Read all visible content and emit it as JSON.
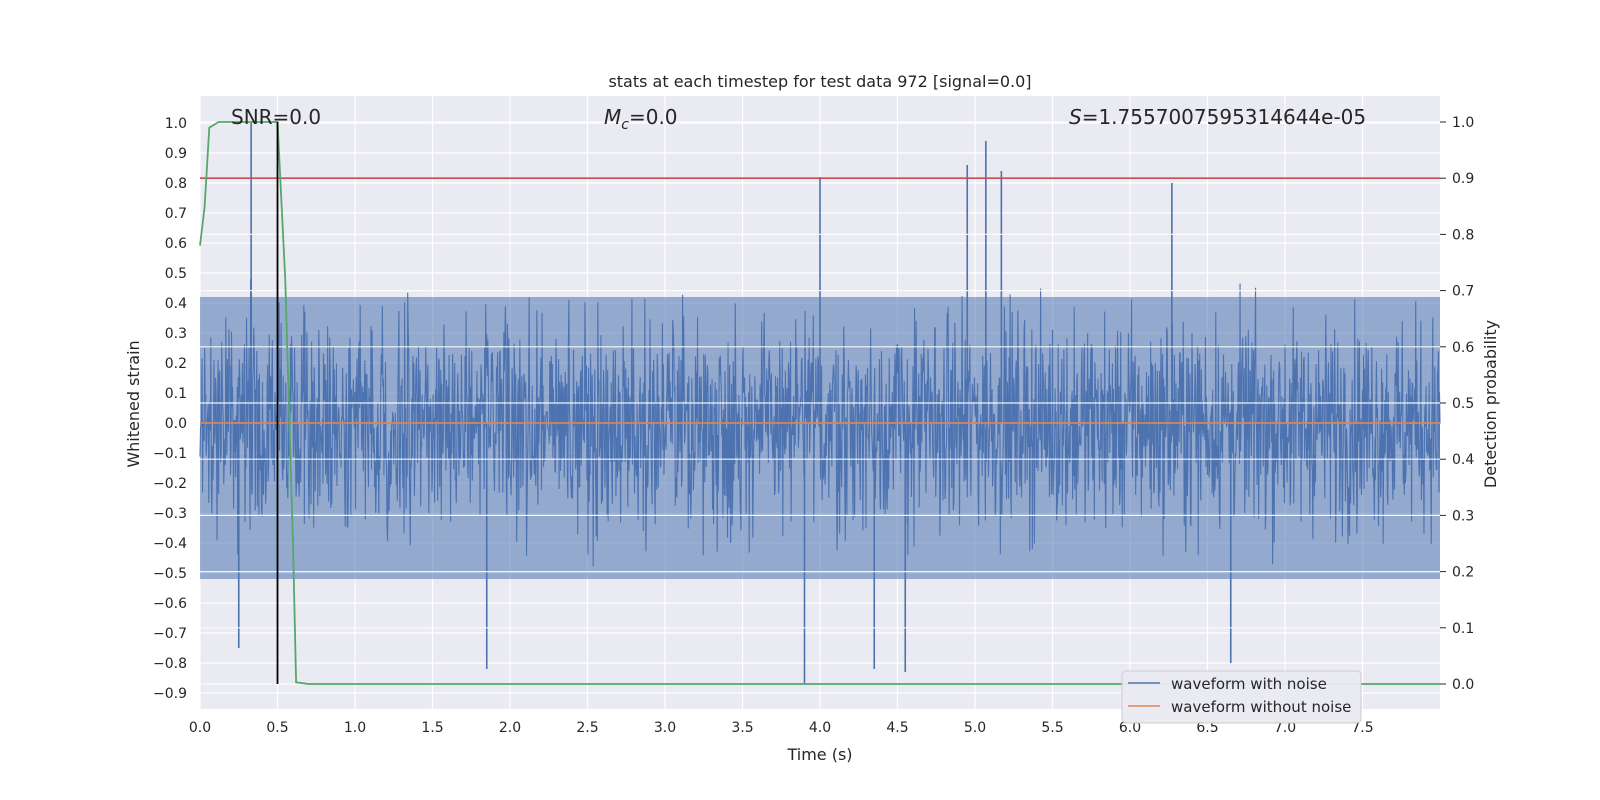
{
  "chart_data": {
    "type": "line",
    "title": "stats at each timestep for test data 972 [signal=0.0]",
    "xlabel": "Time (s)",
    "ylabel_left": "Whitened strain",
    "ylabel_right": "Detection probability",
    "xlim": [
      0.0,
      8.0
    ],
    "ylim_left": [
      -0.97,
      1.08
    ],
    "ylim_right": [
      -0.05,
      1.05
    ],
    "xticks": [
      "0.0",
      "0.5",
      "1.0",
      "1.5",
      "2.0",
      "2.5",
      "3.0",
      "3.5",
      "4.0",
      "4.5",
      "5.0",
      "5.5",
      "6.0",
      "6.5",
      "7.0",
      "7.5"
    ],
    "yticks_left": [
      "1.0",
      "0.9",
      "0.8",
      "0.7",
      "0.6",
      "0.5",
      "0.4",
      "0.3",
      "0.2",
      "0.1",
      "0.0",
      "-0.1",
      "-0.2",
      "-0.3",
      "-0.4",
      "-0.5",
      "-0.6",
      "-0.7",
      "-0.8",
      "-0.9"
    ],
    "yticks_right": [
      "1.0",
      "0.9",
      "0.8",
      "0.7",
      "0.6",
      "0.5",
      "0.4",
      "0.3",
      "0.2",
      "0.1",
      "0.0"
    ],
    "grid": true,
    "legend_position": "lower-right",
    "annotations": {
      "snr": "SNR=0.0",
      "mc_symbol": "M",
      "mc_subscript": "c",
      "mc_value": "=0.0",
      "s_symbol": "S",
      "s_value": "=1.7557007595314644e-05"
    },
    "series": [
      {
        "name": "waveform with noise",
        "axis": "left",
        "color": "#4c72b0",
        "description_values": {
          "typical_upper_envelope": [
            0.2,
            0.6
          ],
          "typical_lower_envelope": [
            -0.6,
            -0.2
          ],
          "peaks_high": [
            [
              0.33,
              1.0
            ],
            [
              4.0,
              0.82
            ],
            [
              4.95,
              0.86
            ],
            [
              5.07,
              0.94
            ],
            [
              5.17,
              0.84
            ],
            [
              6.27,
              0.8
            ]
          ],
          "peaks_low": [
            [
              0.25,
              -0.75
            ],
            [
              1.85,
              -0.82
            ],
            [
              3.9,
              -0.87
            ],
            [
              4.35,
              -0.82
            ],
            [
              4.55,
              -0.83
            ],
            [
              6.65,
              -0.8
            ]
          ]
        }
      },
      {
        "name": "waveform without noise",
        "axis": "left",
        "color": "#dd8452",
        "x": [
          0.0,
          8.0
        ],
        "y": [
          0.0,
          0.0
        ]
      },
      {
        "name": "",
        "axis": "right",
        "color": "#55a868",
        "x": [
          0.0,
          0.03,
          0.06,
          0.12,
          0.2,
          0.3,
          0.4,
          0.5,
          0.55,
          0.6,
          0.62,
          0.7,
          1.0,
          8.0
        ],
        "y": [
          0.78,
          0.85,
          0.99,
          1.0,
          1.0,
          1.0,
          1.0,
          1.0,
          0.72,
          0.25,
          0.003,
          0.0,
          0.0,
          0.0
        ]
      },
      {
        "name": "",
        "axis": "right",
        "color": "#c44e52",
        "x": [
          0.0,
          8.0
        ],
        "y": [
          0.9,
          0.9
        ]
      }
    ],
    "vertical_line": {
      "x": 0.5,
      "color": "#000000"
    }
  }
}
